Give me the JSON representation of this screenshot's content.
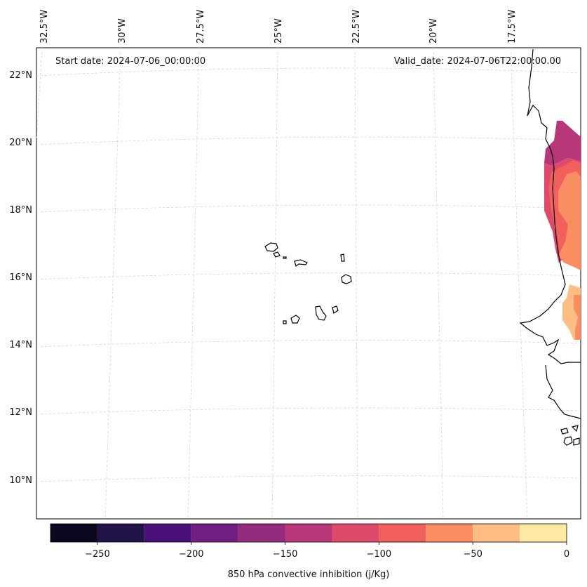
{
  "header": {
    "start_label": "Start date: 2024-07-06_00:00:00",
    "valid_label": "Valid_date: 2024-07-06T22:00:00.00"
  },
  "longitude_labels": [
    "32.5°W",
    "30°W",
    "27.5°W",
    "25°W",
    "22.5°W",
    "20°W",
    "17.5°W"
  ],
  "latitude_labels": [
    "22°N",
    "20°N",
    "18°N",
    "16°N",
    "14°N",
    "12°N",
    "10°N"
  ],
  "colorbar": {
    "label": "850 hPa convective inhibition (j/Kg)",
    "tick_labels": [
      "−250",
      "−200",
      "−150",
      "−100",
      "−50",
      "0"
    ],
    "bins": [
      {
        "range": [
          -275,
          -250
        ],
        "color": "#0b0820"
      },
      {
        "range": [
          -250,
          -225
        ],
        "color": "#221449"
      },
      {
        "range": [
          -225,
          -200
        ],
        "color": "#4a0f78"
      },
      {
        "range": [
          -200,
          -175
        ],
        "color": "#721f81"
      },
      {
        "range": [
          -175,
          -150
        ],
        "color": "#942b7d"
      },
      {
        "range": [
          -150,
          -125
        ],
        "color": "#b73779"
      },
      {
        "range": [
          -125,
          -100
        ],
        "color": "#de4a69"
      },
      {
        "range": [
          -100,
          -75
        ],
        "color": "#f1605c"
      },
      {
        "range": [
          -75,
          -50
        ],
        "color": "#fb8d62"
      },
      {
        "range": [
          -50,
          -25
        ],
        "color": "#febd82"
      },
      {
        "range": [
          -25,
          0
        ],
        "color": "#fde9a3"
      }
    ]
  },
  "field_colors": {
    "very_low": "#b73779",
    "low": "#de4a69",
    "mid": "#f1605c",
    "high": "#fb8d62",
    "higher": "#febd82"
  },
  "colors": {
    "frame": "#000000",
    "grid": "#cccccc",
    "coast": "#000000"
  }
}
